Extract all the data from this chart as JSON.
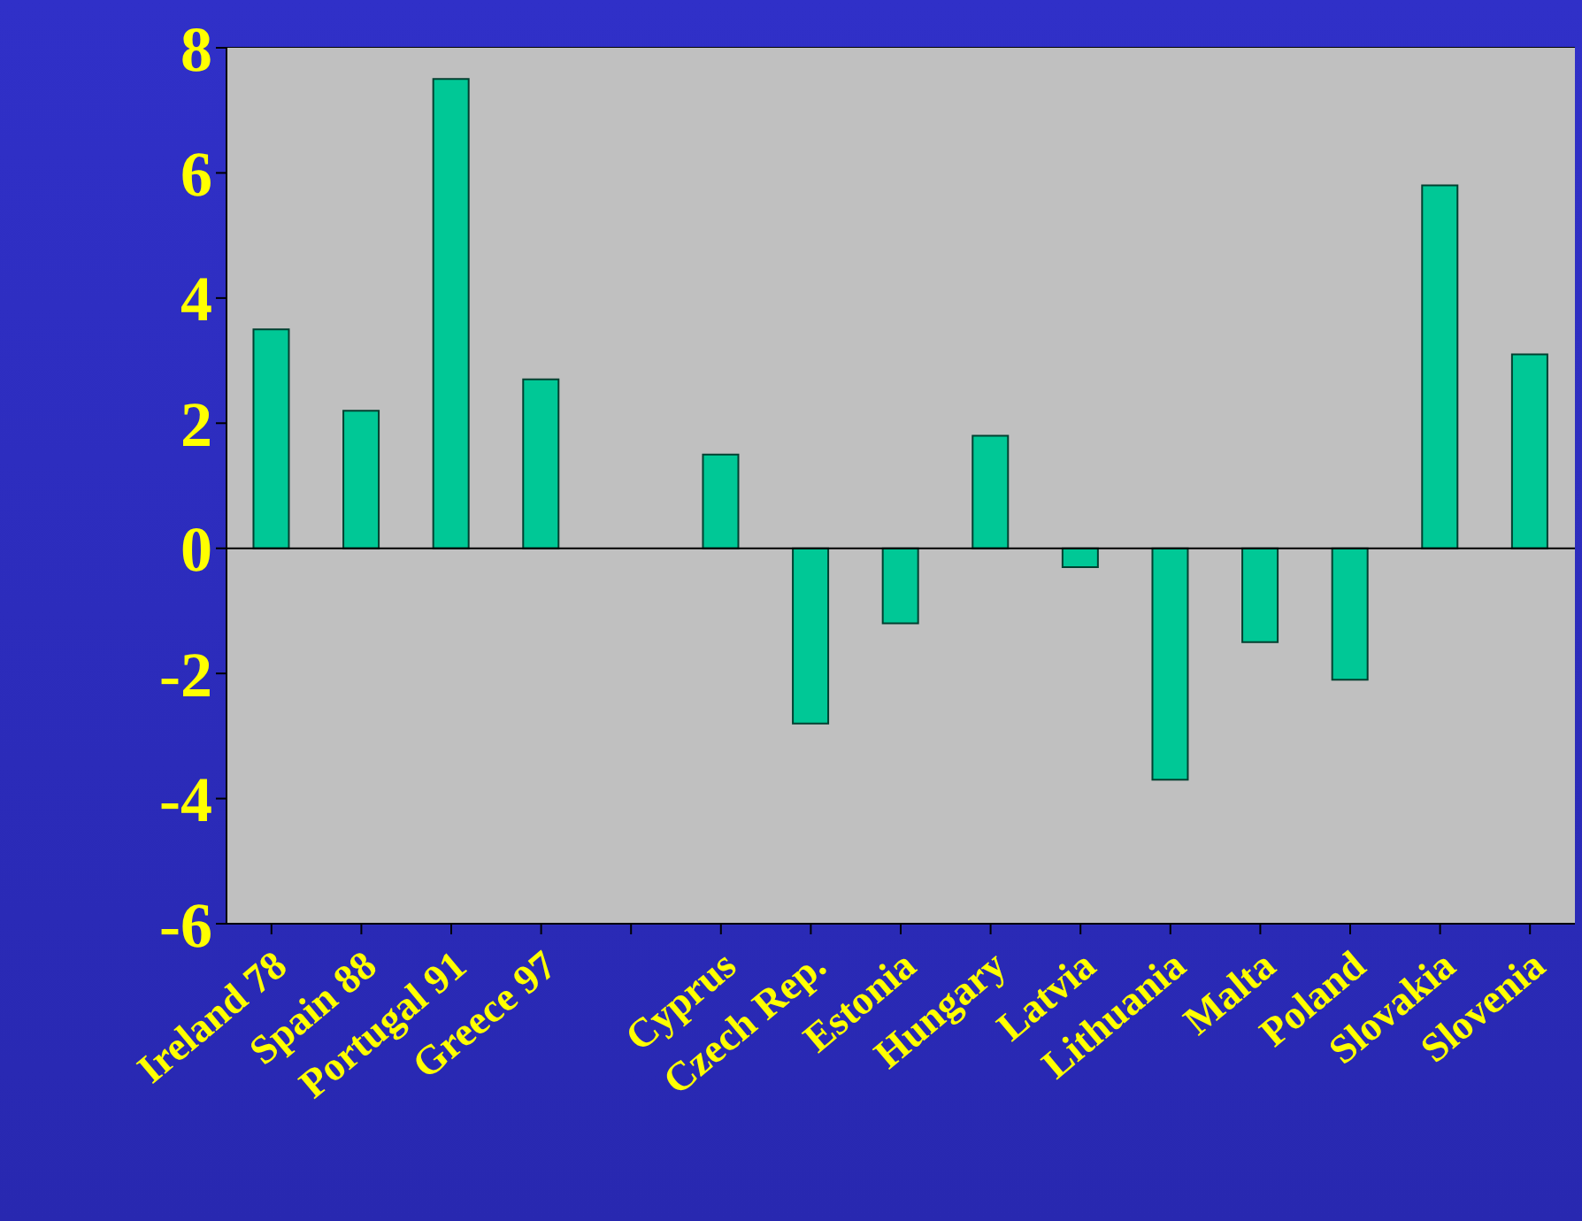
{
  "chart_data": {
    "type": "bar",
    "categories": [
      "Ireland 78",
      "Spain 88",
      "Portugal 91",
      "Greece 97",
      null,
      "Cyprus",
      "Czech Rep.",
      "Estonia",
      "Hungary",
      "Latvia",
      "Lithuania",
      "Malta",
      "Poland",
      "Slovakia",
      "Slovenia"
    ],
    "values": [
      3.5,
      2.2,
      7.5,
      2.7,
      null,
      1.5,
      -2.8,
      -1.2,
      1.8,
      -0.3,
      -3.7,
      -1.5,
      -2.1,
      5.8,
      3.1
    ],
    "color": "#00c896",
    "ylim": [
      -6,
      8
    ],
    "yticks": [
      -6,
      -4,
      -2,
      0,
      2,
      4,
      6,
      8
    ],
    "grid": "y"
  }
}
